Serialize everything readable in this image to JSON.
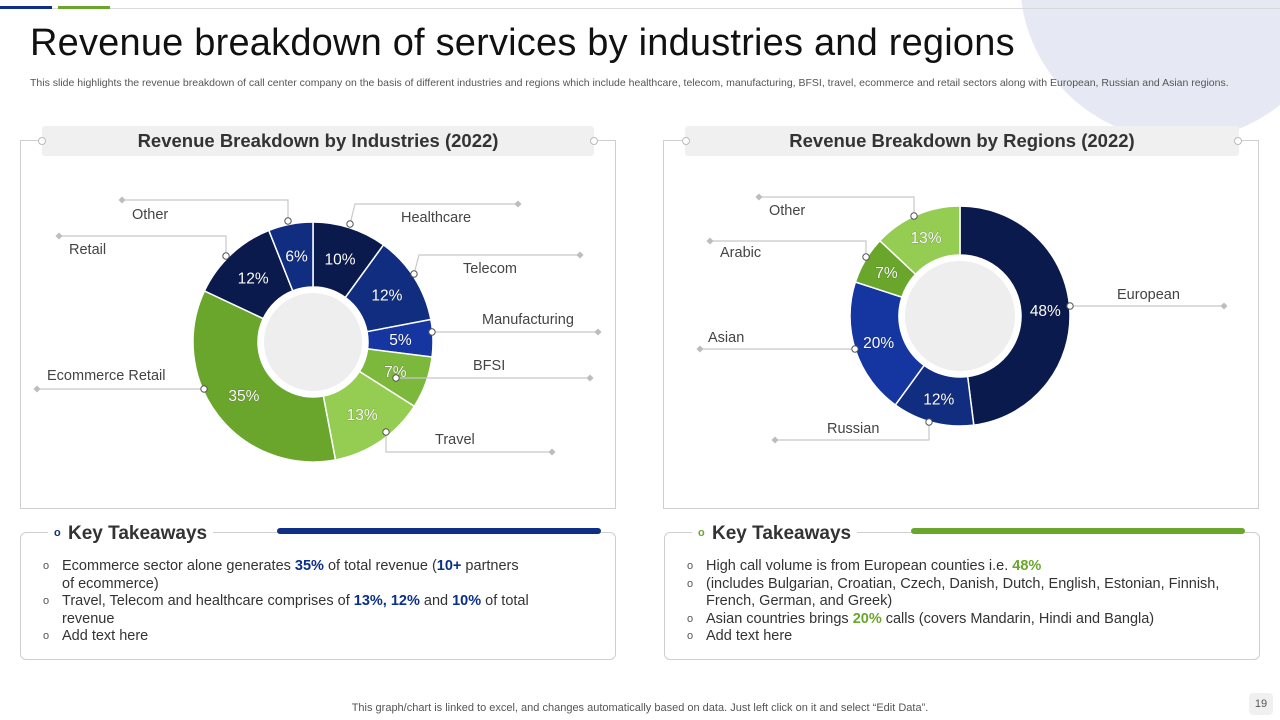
{
  "title": "Revenue breakdown of services by industries and regions",
  "subtitle": "This slide highlights the revenue breakdown of call center company on the basis of different industries and regions which include healthcare, telecom, manufacturing, BFSI, travel,  ecommerce and retail sectors along with European, Russian and Asian regions.",
  "colors": {
    "navy": "#0a1a4d",
    "blue": "#0f2f87",
    "green": "#6aa62c",
    "light_green": "#95cc52"
  },
  "chart_data": [
    {
      "type": "pie",
      "title": "Revenue Breakdown by Industries (2022)",
      "slices": [
        {
          "label": "Healthcare",
          "value": 10,
          "display": "10%",
          "color": "#0a1a4d"
        },
        {
          "label": "Telecom",
          "value": 12,
          "display": "12%",
          "color": "#102d80"
        },
        {
          "label": "Manufacturing",
          "value": 5,
          "display": "5%",
          "color": "#1536a1"
        },
        {
          "label": "BFSI",
          "value": 7,
          "display": "7%",
          "color": "#7cb83c"
        },
        {
          "label": "Travel",
          "value": 13,
          "display": "13%",
          "color": "#95cc52"
        },
        {
          "label": "Ecommerce Retail",
          "value": 35,
          "display": "35%",
          "color": "#6aa62c"
        },
        {
          "label": "Retail",
          "value": 12,
          "display": "12%",
          "color": "#0a1a4d"
        },
        {
          "label": "Other",
          "value": 6,
          "display": "6%",
          "color": "#102d80"
        }
      ]
    },
    {
      "type": "pie",
      "title": "Revenue Breakdown by Regions (2022)",
      "slices": [
        {
          "label": "European",
          "value": 48,
          "display": "48%",
          "color": "#0a1a4d"
        },
        {
          "label": "Russian",
          "value": 12,
          "display": "12%",
          "color": "#102d80"
        },
        {
          "label": "Asian",
          "value": 20,
          "display": "20%",
          "color": "#1536a1"
        },
        {
          "label": "Arabic",
          "value": 7,
          "display": "7%",
          "color": "#6aa62c"
        },
        {
          "label": "Other",
          "value": 13,
          "display": "13%",
          "color": "#95cc52"
        }
      ]
    }
  ],
  "takeaways_left": {
    "heading": "Key Takeaways",
    "items": [
      {
        "parts": [
          "Ecommerce sector alone generates ",
          "35%",
          " of total revenue (",
          "10+",
          " partners of ecommerce)"
        ]
      },
      {
        "parts": [
          "Travel, Telecom and healthcare comprises of ",
          "13%, 12%",
          " and ",
          "10%",
          " of total revenue"
        ]
      },
      {
        "parts": [
          "Add text here"
        ]
      }
    ]
  },
  "takeaways_right": {
    "heading": "Key Takeaways",
    "items": [
      {
        "parts": [
          "High call volume is from European counties i.e. ",
          "48%"
        ]
      },
      {
        "parts": [
          "(includes Bulgarian, Croatian, Czech, Danish, Dutch, English, Estonian, Finnish, French, German, and Greek)"
        ]
      },
      {
        "parts": [
          "Asian countries brings ",
          "20%",
          " calls (covers Mandarin, Hindi and Bangla)"
        ]
      },
      {
        "parts": [
          "Add text here"
        ]
      }
    ]
  },
  "footer": "This graph/chart is linked to excel,  and changes automatically based on data. Just left click on it and select “Edit Data”.",
  "page_number": "19"
}
